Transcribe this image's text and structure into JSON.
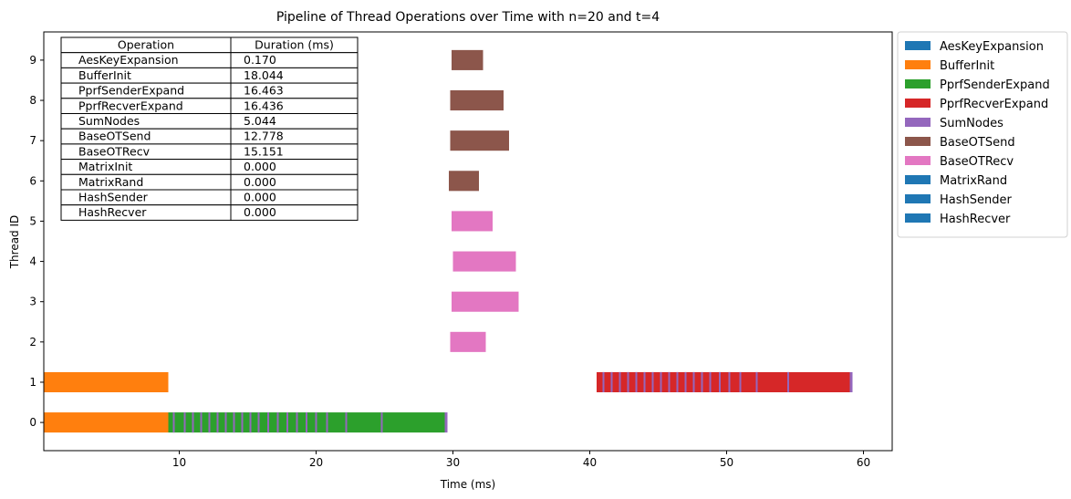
{
  "chart_data": {
    "type": "bar",
    "orientation": "horizontal",
    "title": "Pipeline of Thread Operations over Time with n=20 and t=4",
    "xlabel": "Time (ms)",
    "ylabel": "Thread ID",
    "xlim": [
      0.1,
      62.1
    ],
    "ylim": [
      -0.7,
      9.7
    ],
    "xticks": [
      10,
      20,
      30,
      40,
      50,
      60
    ],
    "yticks": [
      0,
      1,
      2,
      3,
      4,
      5,
      6,
      7,
      8,
      9
    ],
    "grid": false,
    "legend_position": "outside-right-top",
    "legend": [
      {
        "name": "AesKeyExpansion",
        "color": "#1f77b4"
      },
      {
        "name": "BufferInit",
        "color": "#ff7f0e"
      },
      {
        "name": "PprfSenderExpand",
        "color": "#2ca02c"
      },
      {
        "name": "PprfRecverExpand",
        "color": "#d62728"
      },
      {
        "name": "SumNodes",
        "color": "#9467bd"
      },
      {
        "name": "BaseOTSend",
        "color": "#8c564b"
      },
      {
        "name": "BaseOTRecv",
        "color": "#e377c2"
      },
      {
        "name": "MatrixRand",
        "color": "#1f77b4"
      },
      {
        "name": "HashSender",
        "color": "#1f77b4"
      },
      {
        "name": "HashRecver",
        "color": "#1f77b4"
      }
    ],
    "table": {
      "header": [
        "Operation",
        "Duration (ms)"
      ],
      "rows": [
        [
          "AesKeyExpansion",
          "0.170"
        ],
        [
          "BufferInit",
          "18.044"
        ],
        [
          "PprfSenderExpand",
          "16.463"
        ],
        [
          "PprfRecverExpand",
          "16.436"
        ],
        [
          "SumNodes",
          "5.044"
        ],
        [
          "BaseOTSend",
          "12.778"
        ],
        [
          "BaseOTRecv",
          "15.151"
        ],
        [
          "MatrixInit",
          "0.000"
        ],
        [
          "MatrixRand",
          "0.000"
        ],
        [
          "HashSender",
          "0.000"
        ],
        [
          "HashRecver",
          "0.000"
        ]
      ]
    },
    "segments": [
      {
        "thread": 0,
        "op": "BufferInit",
        "start": 0.1,
        "end": 9.2
      },
      {
        "thread": 0,
        "op": "PprfSenderExpand",
        "start": 9.2,
        "end": 29.4
      },
      {
        "thread": 0,
        "op": "SumNodes",
        "start": 29.4,
        "end": 29.6
      },
      {
        "thread": 1,
        "op": "BufferInit",
        "start": 0.1,
        "end": 9.2
      },
      {
        "thread": 1,
        "op": "PprfRecverExpand",
        "start": 40.5,
        "end": 59.0
      },
      {
        "thread": 1,
        "op": "SumNodes",
        "start": 59.0,
        "end": 59.2
      },
      {
        "thread": 2,
        "op": "BaseOTRecv",
        "start": 29.8,
        "end": 32.4
      },
      {
        "thread": 3,
        "op": "BaseOTRecv",
        "start": 29.9,
        "end": 34.8
      },
      {
        "thread": 4,
        "op": "BaseOTRecv",
        "start": 30.0,
        "end": 34.6
      },
      {
        "thread": 5,
        "op": "BaseOTRecv",
        "start": 29.9,
        "end": 32.9
      },
      {
        "thread": 6,
        "op": "BaseOTSend",
        "start": 29.7,
        "end": 31.9
      },
      {
        "thread": 7,
        "op": "BaseOTSend",
        "start": 29.8,
        "end": 34.1
      },
      {
        "thread": 8,
        "op": "BaseOTSend",
        "start": 29.8,
        "end": 33.7
      },
      {
        "thread": 9,
        "op": "BaseOTSend",
        "start": 29.9,
        "end": 32.2
      }
    ],
    "sumnode_markers": [
      {
        "thread": 0,
        "times": [
          9.6,
          10.4,
          11.0,
          11.6,
          12.2,
          12.8,
          13.4,
          14.0,
          14.6,
          15.2,
          15.8,
          16.5,
          17.2,
          17.9,
          18.6,
          19.3,
          20.0,
          20.8,
          22.2,
          24.8
        ]
      },
      {
        "thread": 1,
        "times": [
          41.0,
          41.6,
          42.2,
          42.8,
          43.4,
          44.0,
          44.6,
          45.2,
          45.8,
          46.4,
          47.0,
          47.6,
          48.2,
          48.8,
          49.5,
          50.2,
          51.0,
          52.2,
          54.5
        ]
      }
    ]
  }
}
